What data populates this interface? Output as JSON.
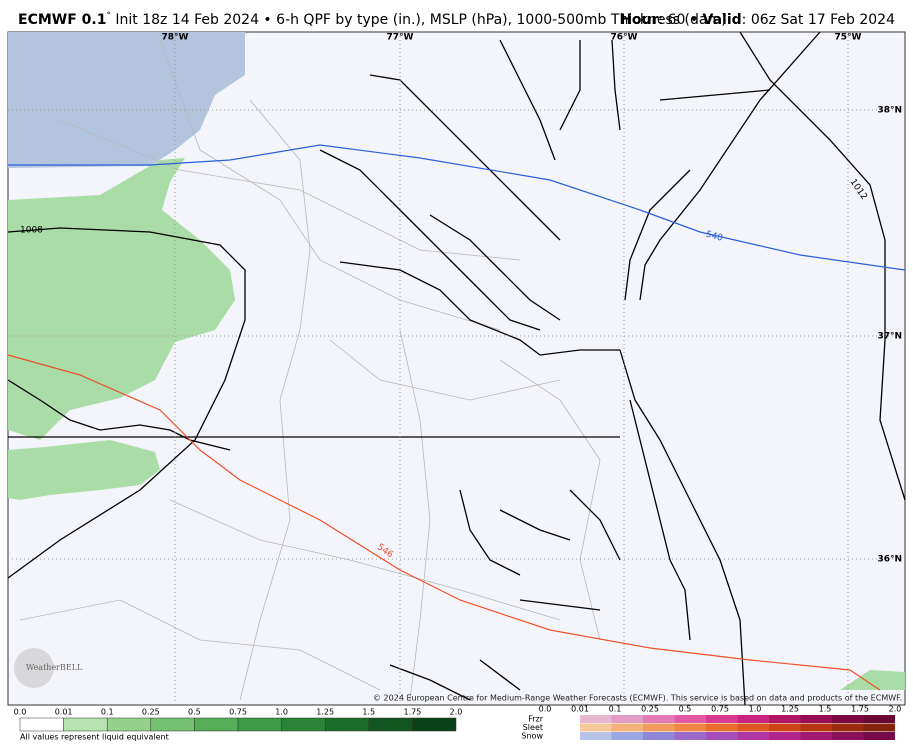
{
  "header": {
    "model": "ECMWF 0.1",
    "degree": "°",
    "description": " Init 18z 14 Feb 2024 • 6-h QPF by type (in.), MSLP (hPa), 1000-500mb Thickness (dam)",
    "hour_label": "Hour",
    "hour_text": ": 60 • ",
    "valid_label": "Valid",
    "valid_text": ": 06z Sat 17 Feb 2024"
  },
  "map": {
    "longitudes": [
      "78°W",
      "77°W",
      "76°W",
      "75°W"
    ],
    "latitudes": [
      "38°N",
      "37°N",
      "36°N"
    ],
    "contour_labels": {
      "mslp_west": "1008",
      "mslp_east": "1012",
      "thickness_north": "540",
      "thickness_south": "546"
    },
    "copyright": "© 2024 European Centre for Medium-Range Weather Forecasts (ECMWF). This service is based on data and products of the ECMWF.",
    "logo": "WeatherBELL"
  },
  "legend": {
    "rain_ticks": [
      "0.0",
      "0.01",
      "0.1",
      "0.25",
      "0.5",
      "0.75",
      "1.0",
      "1.25",
      "1.5",
      "1.75",
      "2.0"
    ],
    "note": "All values represent liquid equivalent",
    "types": [
      "Frzr",
      "Sleet",
      "Snow"
    ],
    "mixed_ticks": [
      "0.0",
      "0.01",
      "0.1",
      "0.25",
      "0.5",
      "0.75",
      "1.0",
      "1.25",
      "1.5",
      "1.75",
      "2.0"
    ]
  }
}
